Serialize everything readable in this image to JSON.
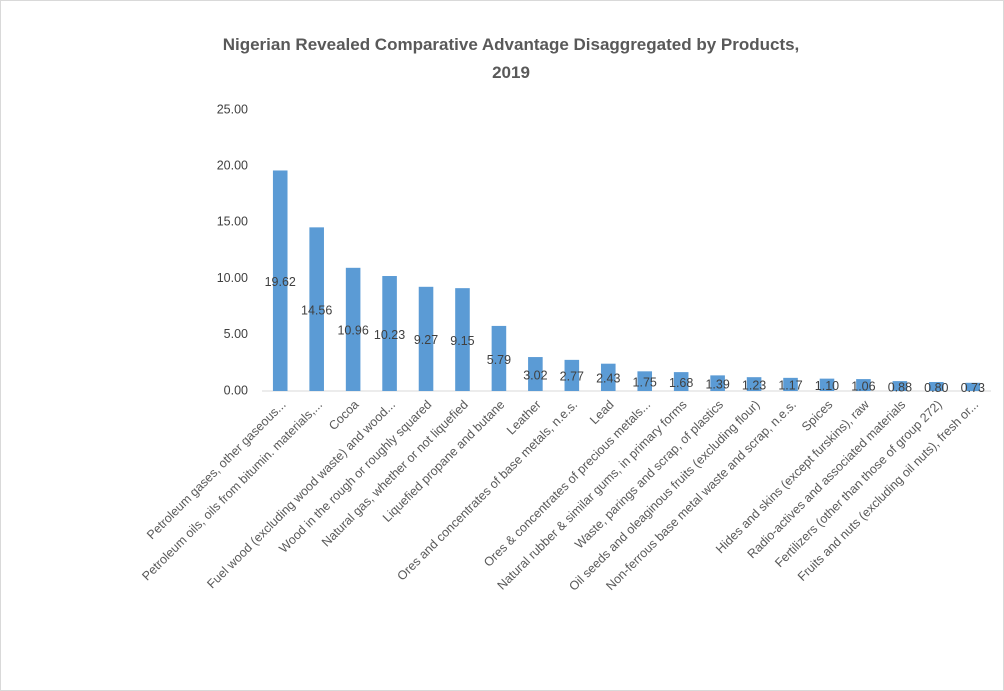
{
  "chart_data": {
    "type": "bar",
    "title": "Nigerian Revealed Comparative Advantage Disaggregated by Products, 2019",
    "categories": [
      "Petroleum gases, other gaseous...",
      "Petroleum oils, oils from bitumin. materials,...",
      "Cocoa",
      "Fuel wood (excluding wood waste) and wood...",
      "Wood in the rough or roughly squared",
      "Natural gas, whether or not liquefied",
      "Liquefied propane and butane",
      "Leather",
      "Ores and concentrates of base metals, n.e.s.",
      "Lead",
      "Ores & concentrates of precious metals...",
      "Natural rubber & similar gums, in primary forms",
      "Waste, parings and scrap, of plastics",
      "Oil seeds and oleaginous fruits (excluding flour)",
      "Non-ferrous base metal waste and scrap, n.e.s.",
      "Spices",
      "Hides and skins (except furskins), raw",
      "Radio-actives and associated materials",
      "Fertilizers (other than those of group 272)",
      "Fruits and nuts (excluding oil nuts), fresh or..."
    ],
    "values": [
      19.62,
      14.56,
      10.96,
      10.23,
      9.27,
      9.15,
      5.79,
      3.02,
      2.77,
      2.43,
      1.75,
      1.68,
      1.39,
      1.23,
      1.17,
      1.1,
      1.06,
      0.88,
      0.8,
      0.73
    ],
    "value_labels": [
      "19.62",
      "14.56",
      "10.96",
      "10.23",
      "9.27",
      "9.15",
      "5.79",
      "3.02",
      "2.77",
      "2.43",
      "1.75",
      "1.68",
      "1.39",
      "1.23",
      "1.17",
      "1.10",
      "1.06",
      "0.88",
      "0.80",
      "0.73"
    ],
    "color": "#5b9bd5",
    "ylim": [
      0,
      25
    ],
    "yticks": [
      {
        "value": 0,
        "label": "0.00"
      },
      {
        "value": 5,
        "label": "5.00"
      },
      {
        "value": 10,
        "label": "10.00"
      },
      {
        "value": 15,
        "label": "15.00"
      },
      {
        "value": 20,
        "label": "20.00"
      },
      {
        "value": 25,
        "label": "25.00"
      }
    ],
    "grid": false
  }
}
